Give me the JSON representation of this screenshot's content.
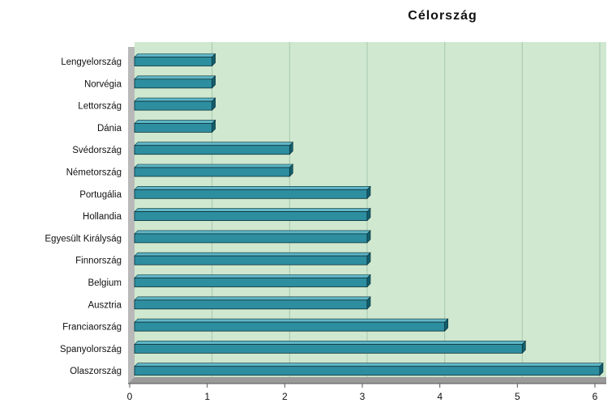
{
  "chart_data": {
    "type": "bar",
    "orientation": "horizontal",
    "title": "Célország",
    "xlabel": "",
    "ylabel": "",
    "categories": [
      "Lengyelország",
      "Norvégia",
      "Lettország",
      "Dánia",
      "Svédország",
      "Németország",
      "Portugália",
      "Hollandia",
      "Egyesült Királyság",
      "Finnország",
      "Belgium",
      "Ausztria",
      "Franciaország",
      "Spanyolország",
      "Olaszország"
    ],
    "values": [
      1,
      1,
      1,
      1,
      2,
      2,
      3,
      3,
      3,
      3,
      3,
      3,
      4,
      5,
      6
    ],
    "xlim": [
      0,
      6
    ],
    "xticks": [
      "0",
      "1",
      "2",
      "3",
      "4",
      "5",
      "6"
    ],
    "grid": true,
    "legend": "none",
    "colors": {
      "plot_background": "#cfe8cf",
      "bar_front": "#2d8ea0",
      "bar_top": "#5fb6c6",
      "bar_side": "#145e6c",
      "gridline": "#a9c9b0",
      "wall": "#b9b9b9"
    }
  }
}
